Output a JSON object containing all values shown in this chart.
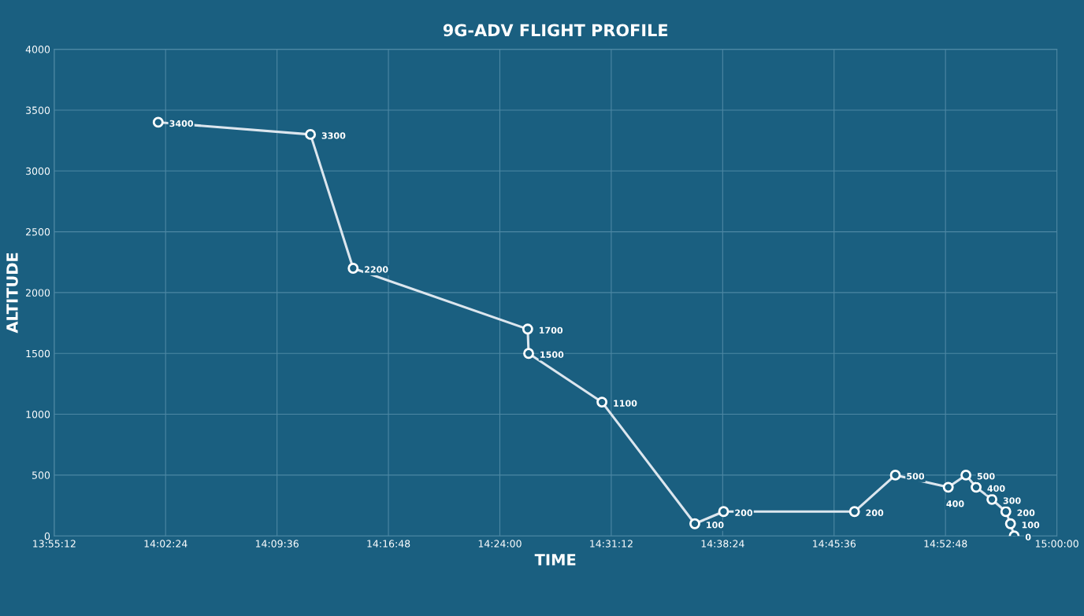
{
  "chart_data": {
    "type": "line",
    "title": "9G-ADV FLIGHT PROFILE",
    "xlabel": "TIME",
    "ylabel": "ALTITUDE",
    "x": [
      14.032,
      14.196,
      14.242,
      14.43,
      14.431,
      14.51,
      14.61,
      14.641,
      14.782,
      14.826,
      14.883,
      14.902,
      14.913,
      14.93,
      14.945,
      14.95,
      14.954
    ],
    "series": [
      {
        "color": "#dce6ee",
        "values": [
          3400,
          3300,
          2200,
          1700,
          1500,
          1100,
          100,
          200,
          200,
          500,
          400,
          500,
          400,
          300,
          200,
          100,
          0
        ]
      }
    ],
    "xlim": [
      13.92,
      15.0
    ],
    "xticks": [
      {
        "value": 13.92,
        "label": "13:55:12"
      },
      {
        "value": 14.04,
        "label": "14:02:24"
      },
      {
        "value": 14.16,
        "label": "14:09:36"
      },
      {
        "value": 14.28,
        "label": "14:16:48"
      },
      {
        "value": 14.4,
        "label": "14:24:00"
      },
      {
        "value": 14.52,
        "label": "14:31:12"
      },
      {
        "value": 14.64,
        "label": "14:38:24"
      },
      {
        "value": 14.76,
        "label": "14:45:36"
      },
      {
        "value": 14.88,
        "label": "14:52:48"
      },
      {
        "value": 15.0,
        "label": "15:00:00"
      }
    ],
    "ylim": [
      0,
      4000
    ],
    "yticks": [
      0,
      500,
      1000,
      1500,
      2000,
      2500,
      3000,
      3500,
      4000
    ],
    "grid": true,
    "marker": "circle",
    "line_style": "solid",
    "data_labels": true
  }
}
